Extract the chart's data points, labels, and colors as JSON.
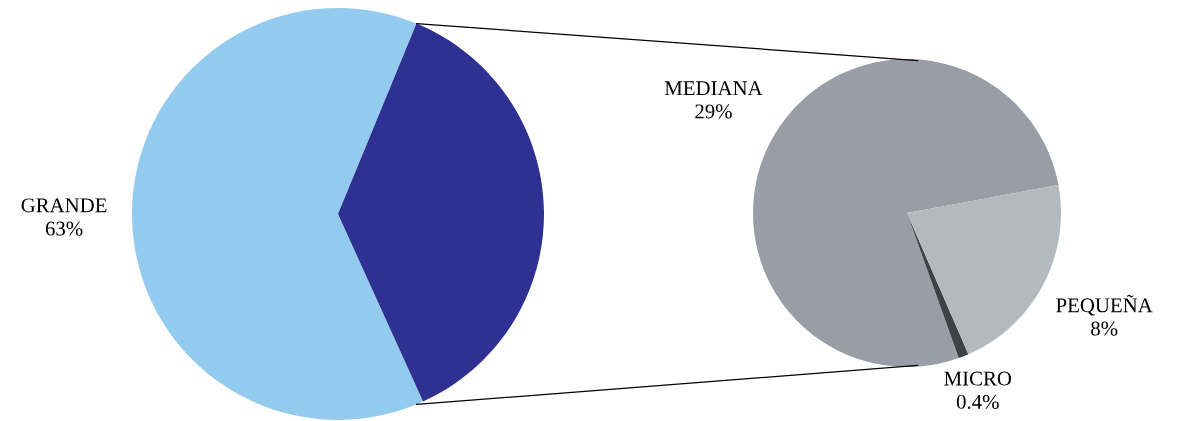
{
  "chart_data": [
    {
      "type": "pie",
      "categories": [
        "GRANDE",
        null
      ],
      "values": [
        63,
        37
      ],
      "value_labels": [
        "63%",
        null
      ],
      "colors": [
        "#93cbee",
        "#2e3192"
      ]
    },
    {
      "type": "pie",
      "categories": [
        "MEDIANA",
        "MICRO",
        "PEQUEÑA"
      ],
      "values": [
        29,
        0.4,
        8
      ],
      "value_labels": [
        "29%",
        "0.4%",
        "8%"
      ],
      "colors": [
        "#979ea6",
        "#3c4347",
        "#b3babe"
      ]
    }
  ]
}
